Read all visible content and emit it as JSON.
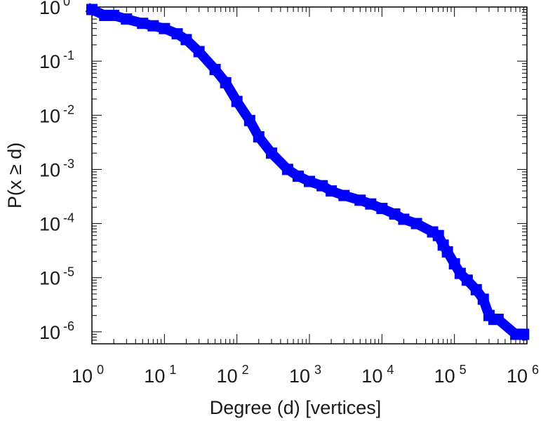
{
  "chart_data": {
    "type": "scatter",
    "xlabel": "Degree (d) [vertices]",
    "ylabel": "P(x ≥ d)",
    "x_scale": "log",
    "y_scale": "log",
    "xlim": [
      1,
      1000000
    ],
    "ylim": [
      6e-07,
      1
    ],
    "x_ticks": [
      {
        "base": "10",
        "exp": "0",
        "value": 1
      },
      {
        "base": "10",
        "exp": "1",
        "value": 10
      },
      {
        "base": "10",
        "exp": "2",
        "value": 100
      },
      {
        "base": "10",
        "exp": "3",
        "value": 1000
      },
      {
        "base": "10",
        "exp": "4",
        "value": 10000
      },
      {
        "base": "10",
        "exp": "5",
        "value": 100000
      },
      {
        "base": "10",
        "exp": "6",
        "value": 1000000
      }
    ],
    "y_ticks": [
      {
        "base": "10",
        "exp": "0",
        "value": 1
      },
      {
        "base": "10",
        "exp": "-1",
        "value": 0.1
      },
      {
        "base": "10",
        "exp": "-2",
        "value": 0.01
      },
      {
        "base": "10",
        "exp": "-3",
        "value": 0.001
      },
      {
        "base": "10",
        "exp": "-4",
        "value": 0.0001
      },
      {
        "base": "10",
        "exp": "-5",
        "value": 1e-05
      },
      {
        "base": "10",
        "exp": "-6",
        "value": 1e-06
      }
    ],
    "grid": false,
    "legend": "none",
    "marker": "square",
    "color": "#0000ff",
    "series": [
      {
        "x": [
          1,
          1.5,
          2,
          3,
          5,
          7,
          10,
          15,
          20,
          30,
          50,
          70,
          100,
          150,
          200,
          300,
          500,
          700,
          1000,
          1500,
          2000,
          3000,
          5000,
          7000,
          10000,
          15000,
          20000,
          30000,
          50000,
          60000,
          70000,
          80000,
          100000,
          120000,
          150000,
          200000,
          250000,
          300000,
          350000,
          400000,
          700000,
          900000
        ],
        "y": [
          0.9,
          0.7,
          0.7,
          0.6,
          0.5,
          0.45,
          0.4,
          0.32,
          0.25,
          0.15,
          0.07,
          0.04,
          0.018,
          0.008,
          0.004,
          0.002,
          0.001,
          0.00075,
          0.0006,
          0.0005,
          0.0004,
          0.00033,
          0.00027,
          0.00023,
          0.00019,
          0.00015,
          0.00012,
          0.0001,
          7e-05,
          6e-05,
          4e-05,
          3e-05,
          1.8e-05,
          1.2e-05,
          9e-06,
          6e-06,
          4e-06,
          2e-06,
          1.7e-06,
          1.7e-06,
          9e-07,
          9e-07
        ]
      }
    ]
  }
}
